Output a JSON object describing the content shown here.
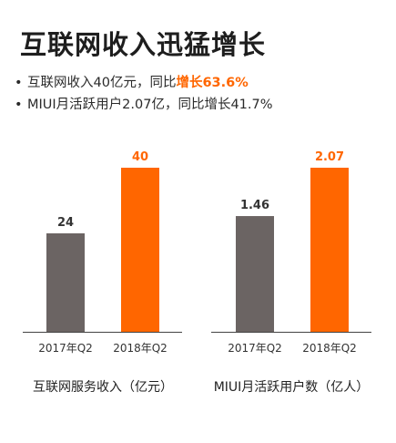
{
  "title": "互联网收入迅猛增长",
  "bullets": [
    {
      "dot": "•",
      "text": "互联网收入40亿元，同比",
      "highlight": "增长63.6%"
    },
    {
      "dot": "•",
      "text": "MIUI月活跃用户2.07亿，同比增长41.7%",
      "highlight": ""
    }
  ],
  "colors": {
    "accent": "#ff6600",
    "gray_bar": "#6b6463",
    "text": "#222222"
  },
  "chart_data": [
    {
      "type": "bar",
      "title": "互联网服务收入（亿元）",
      "categories": [
        "2017年Q2",
        "2018年Q2"
      ],
      "values": [
        24,
        40
      ],
      "value_labels": [
        "24",
        "40"
      ],
      "colors": [
        "#6b6463",
        "#ff6600"
      ],
      "ylim": [
        0,
        40
      ]
    },
    {
      "type": "bar",
      "title": "MIUI月活跃用户数（亿人）",
      "categories": [
        "2017年Q2",
        "2018年Q2"
      ],
      "values": [
        1.46,
        2.07
      ],
      "value_labels": [
        "1.46",
        "2.07"
      ],
      "colors": [
        "#6b6463",
        "#ff6600"
      ],
      "ylim": [
        0,
        2.07
      ]
    }
  ]
}
